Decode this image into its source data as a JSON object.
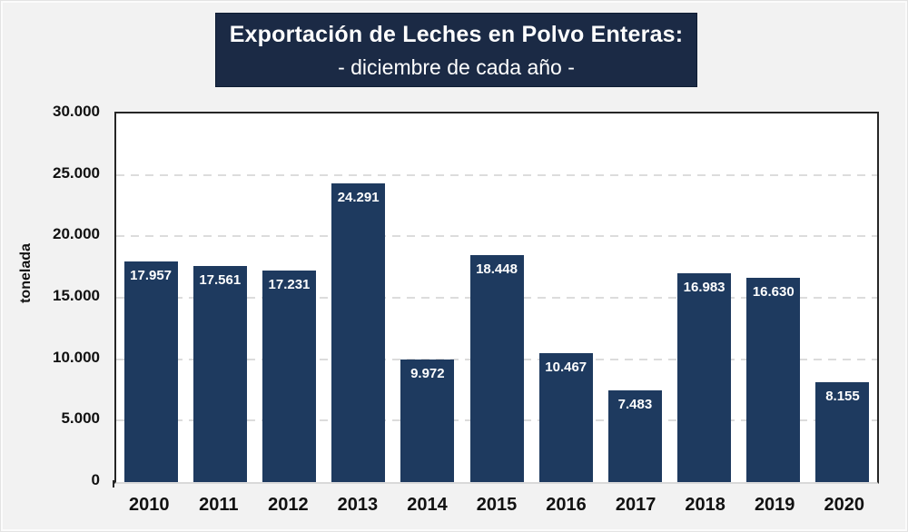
{
  "title": {
    "line1": "Exportación de Leches en Polvo Enteras:",
    "line2": "- diciembre de cada año -",
    "bg_color": "#1b2a45",
    "border_color": "#0e1c33",
    "text_color": "#ffffff"
  },
  "chart_data": {
    "type": "bar",
    "title": "Exportación de Leches en Polvo Enteras: - diciembre de cada año -",
    "categories": [
      "2010",
      "2011",
      "2012",
      "2013",
      "2014",
      "2015",
      "2016",
      "2017",
      "2018",
      "2019",
      "2020"
    ],
    "values": [
      17957,
      17561,
      17231,
      24291,
      9972,
      18448,
      10467,
      7483,
      16983,
      16630,
      8155
    ],
    "value_labels": [
      "17.957",
      "17.561",
      "17.231",
      "24.291",
      "9.972",
      "18.448",
      "10.467",
      "7.483",
      "16.983",
      "16.630",
      "8.155"
    ],
    "xlabel": "",
    "ylabel": "tonelada",
    "ylim": [
      0,
      30000
    ],
    "ytick_step": 5000,
    "yticks": [
      "0",
      "5.000",
      "10.000",
      "15.000",
      "20.000",
      "25.000",
      "30.000"
    ],
    "grid": "horizontal-dashed",
    "legend": "none",
    "colors": {
      "bar": "#1e3a5f",
      "plot_bg": "#ffffff",
      "page_bg": "#f2f2f2",
      "grid": "#dcdcdc",
      "axis": "#262626",
      "value_label": "#ffffff",
      "tick_text": "#111111"
    }
  }
}
